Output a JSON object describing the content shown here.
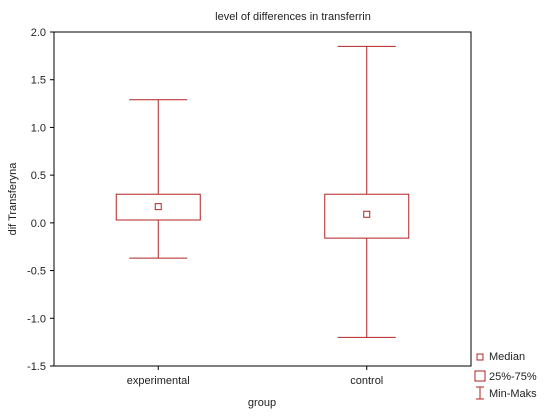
{
  "chart_data": {
    "type": "box",
    "title": "level of differences in transferrin",
    "xlabel": "group",
    "ylabel": "dif Transferyna",
    "ylim": [
      -1.5,
      2.0
    ],
    "y_ticks": [
      "2.0",
      "1.5",
      "1.0",
      "0.5",
      "0.0",
      "-0.5",
      "-1.0",
      "-1.5"
    ],
    "y_tick_values": [
      2.0,
      1.5,
      1.0,
      0.5,
      0.0,
      -0.5,
      -1.0,
      -1.5
    ],
    "categories": [
      "experimental",
      "control"
    ],
    "boxes": [
      {
        "category": "experimental",
        "min": -0.37,
        "q1": 0.03,
        "median": 0.17,
        "q3": 0.3,
        "max": 1.29
      },
      {
        "category": "control",
        "min": -1.2,
        "q1": -0.16,
        "median": 0.09,
        "q3": 0.3,
        "max": 1.85
      }
    ],
    "legend": {
      "placement": "bottom-right",
      "entries": [
        "Median",
        "25%-75%",
        "Min-Maks"
      ]
    },
    "grid": false,
    "colors": {
      "box": "#b22222",
      "axis": "#000000"
    }
  }
}
